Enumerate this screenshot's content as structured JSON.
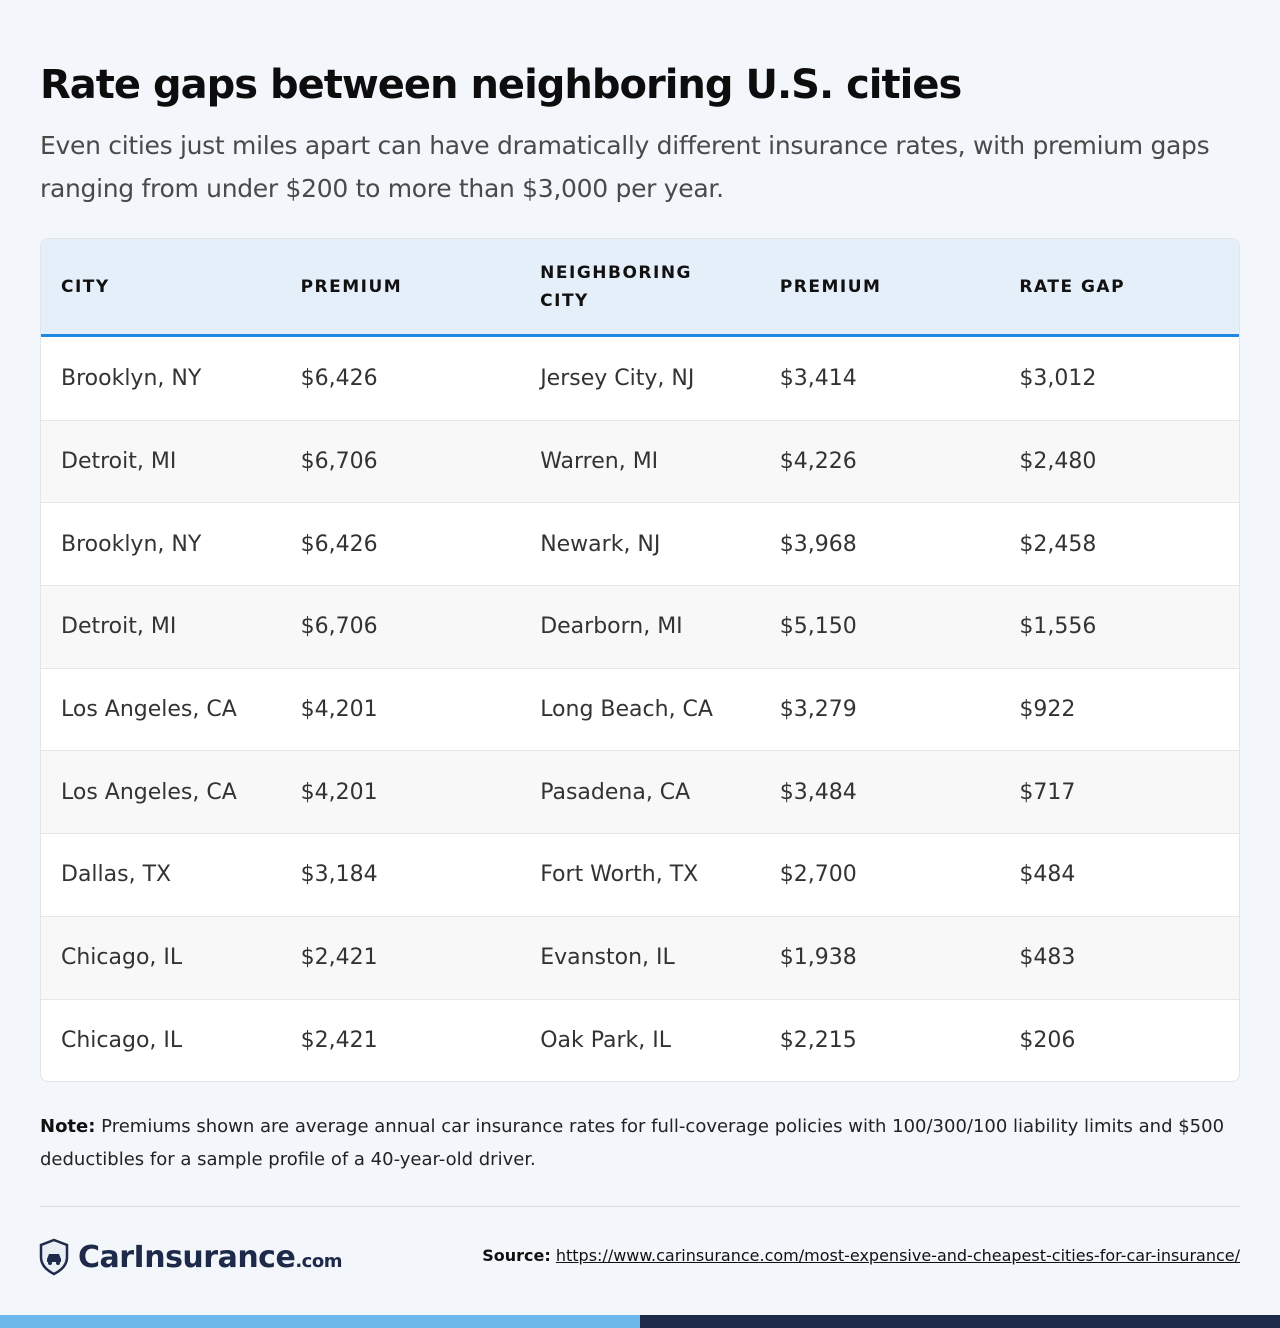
{
  "title": "Rate gaps between neighboring U.S. cities",
  "subtitle": "Even cities just miles apart can have dramatically different insurance rates, with premium gaps ranging from under $200 to more than $3,000 per year.",
  "table": {
    "headers": [
      "CITY",
      "PREMIUM",
      "NEIGHBORING CITY",
      "PREMIUM",
      "RATE GAP"
    ],
    "rows": [
      [
        "Brooklyn, NY",
        "$6,426",
        "Jersey City, NJ",
        "$3,414",
        "$3,012"
      ],
      [
        "Detroit, MI",
        "$6,706",
        "Warren, MI",
        "$4,226",
        "$2,480"
      ],
      [
        "Brooklyn, NY",
        "$6,426",
        "Newark, NJ",
        "$3,968",
        "$2,458"
      ],
      [
        "Detroit, MI",
        "$6,706",
        "Dearborn, MI",
        "$5,150",
        "$1,556"
      ],
      [
        "Los Angeles, CA",
        "$4,201",
        "Long Beach, CA",
        "$3,279",
        "$922"
      ],
      [
        "Los Angeles, CA",
        "$4,201",
        "Pasadena, CA",
        "$3,484",
        "$717"
      ],
      [
        "Dallas, TX",
        "$3,184",
        "Fort Worth, TX",
        "$2,700",
        "$484"
      ],
      [
        "Chicago, IL",
        "$2,421",
        "Evanston, IL",
        "$1,938",
        "$483"
      ],
      [
        "Chicago, IL",
        "$2,421",
        "Oak Park, IL",
        "$2,215",
        "$206"
      ]
    ]
  },
  "note": {
    "label": "Note:",
    "text": " Premiums shown are average annual car insurance rates for full-coverage policies with 100/300/100 liability limits and $500 deductibles for a sample profile of a 40-year-old driver."
  },
  "footer": {
    "logo_main": "CarInsurance",
    "logo_suffix": ".com",
    "logo_icon": "shield-car-icon",
    "source_label": "Source:",
    "source_url": "https://www.carinsurance.com/most-expensive-and-cheapest-cities-for-car-insurance/"
  },
  "colors": {
    "accent": "#1e88e5",
    "header_bg": "#e5eff9",
    "brand_dark": "#1e2a4a",
    "brand_light": "#6cb8ea"
  }
}
